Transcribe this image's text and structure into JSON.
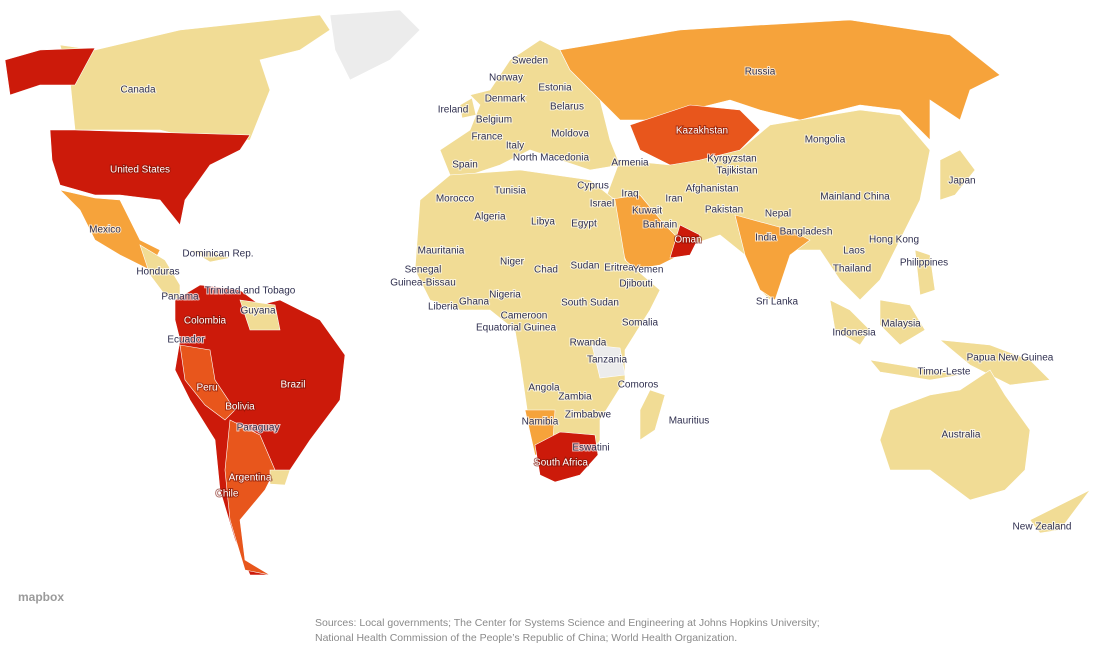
{
  "labels": [
    "Canada",
    "United States",
    "Mexico",
    "Dominican Rep.",
    "Honduras",
    "Trinidad and Tobago",
    "Panama",
    "Guyana",
    "Colombia",
    "Ecuador",
    "Peru",
    "Brazil",
    "Bolivia",
    "Paraguay",
    "Argentina",
    "Chile",
    "Sweden",
    "Norway",
    "Estonia",
    "Denmark",
    "Belarus",
    "Ireland",
    "Belgium",
    "Moldova",
    "France",
    "Italy",
    "North Macedonia",
    "Armenia",
    "Spain",
    "Cyprus",
    "Tunisia",
    "Israel",
    "Morocco",
    "Algeria",
    "Libya",
    "Egypt",
    "Mauritania",
    "Senegal",
    "Guinea-Bissau",
    "Niger",
    "Chad",
    "Sudan",
    "Eritrea",
    "Yemen",
    "Djibouti",
    "Nigeria",
    "Ghana",
    "South Sudan",
    "Liberia",
    "Cameroon",
    "Equatorial Guinea",
    "Somalia",
    "Rwanda",
    "Tanzania",
    "Comoros",
    "Angola",
    "Zambia",
    "Zimbabwe",
    "Namibia",
    "Mauritius",
    "Eswatini",
    "South Africa",
    "Russia",
    "Kazakhstan",
    "Mongolia",
    "Kyrgyzstan",
    "Tajikistan",
    "Iraq",
    "Afghanistan",
    "Kuwait",
    "Iran",
    "Bahrain",
    "Pakistan",
    "Oman",
    "Mainland China",
    "Japan",
    "Nepal",
    "Bangladesh",
    "India",
    "Hong Kong",
    "Laos",
    "Philippines",
    "Thailand",
    "Sri Lanka",
    "Malaysia",
    "Indonesia",
    "Papua New Guinea",
    "Timor-Leste",
    "Australia",
    "New Zealand"
  ],
  "attribution": "mapbox",
  "source_lines": [
    "Sources: Local governments; The Center for Systems Science and Engineering at Johns Hopkins University;",
    "National Health Commission of the People’s Republic of China; World Health Organization."
  ]
}
